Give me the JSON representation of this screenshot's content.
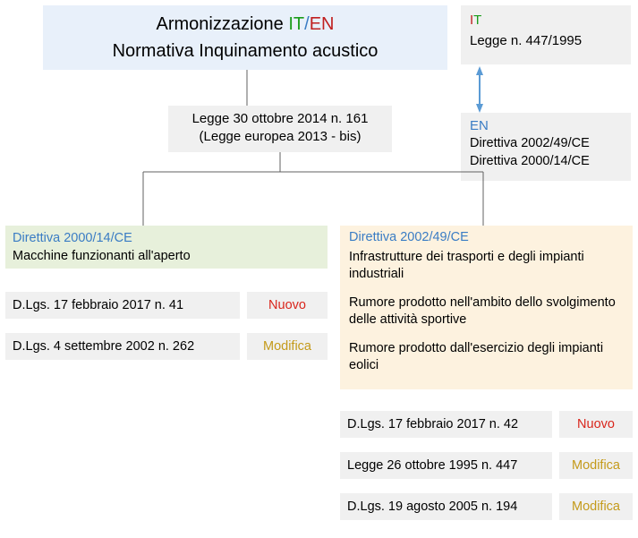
{
  "colors": {
    "blue": "#3a7cc4",
    "green": "#1a9c1a",
    "red": "#d9261c",
    "gold": "#c49a1a",
    "darkred": "#c02020",
    "bg_title": "#e8f0fa",
    "bg_gray": "#f0f0f0",
    "bg_green": "#e7f0db",
    "bg_cream": "#fdf2df",
    "line": "#606060",
    "arrow": "#5b9bd5"
  },
  "title": {
    "line1_pre": "Armonizzazione ",
    "line1_it": "IT",
    "line1_slash": "/",
    "line1_en": "EN",
    "line2": "Normativa Inquinamento acustico"
  },
  "law": {
    "line1": "Legge 30 ottobre 2014 n. 161",
    "line2": "(Legge europea 2013 - bis)"
  },
  "it_box": {
    "header_i": "I",
    "header_t": "T",
    "body": "Legge n. 447/1995"
  },
  "en_box": {
    "header": "EN",
    "line1": "Direttiva 2002/49/CE",
    "line2": "Direttiva 2000/14/CE"
  },
  "dir1": {
    "header": "Direttiva 2000/14/CE",
    "body": "Macchine funzionanti all'aperto",
    "rows": [
      {
        "text": "D.Lgs. 17 febbraio 2017 n. 41",
        "tag": "Nuovo",
        "tag_color": "#d9261c"
      },
      {
        "text": "D.Lgs. 4 settembre 2002 n. 262",
        "tag": "Modifica",
        "tag_color": "#c49a1a"
      }
    ]
  },
  "dir2": {
    "header": "Direttiva 2002/49/CE",
    "p1": "Infrastrutture dei trasporti e degli impianti industriali",
    "p2": "Rumore prodotto nell'ambito dello svolgimento delle attività sportive",
    "p3": "Rumore prodotto dall'esercizio degli impianti eolici",
    "rows": [
      {
        "text": "D.Lgs. 17 febbraio 2017 n. 42",
        "tag": "Nuovo",
        "tag_color": "#d9261c"
      },
      {
        "text": "Legge 26 ottobre 1995 n. 447",
        "tag": "Modifica",
        "tag_color": "#c49a1a"
      },
      {
        "text": "D.Lgs. 19 agosto 2005 n. 194",
        "tag": "Modifica",
        "tag_color": "#c49a1a"
      }
    ]
  },
  "layout": {
    "dir1_rows": {
      "left_main": 6,
      "width_main": 262,
      "left_tag": 276,
      "width_tag": 90,
      "top_start": 326,
      "row_gap": 46
    },
    "dir2_rows": {
      "left_main": 380,
      "width_main": 237,
      "left_tag": 625,
      "width_tag": 82,
      "top_start": 459,
      "row_gap": 46
    }
  }
}
